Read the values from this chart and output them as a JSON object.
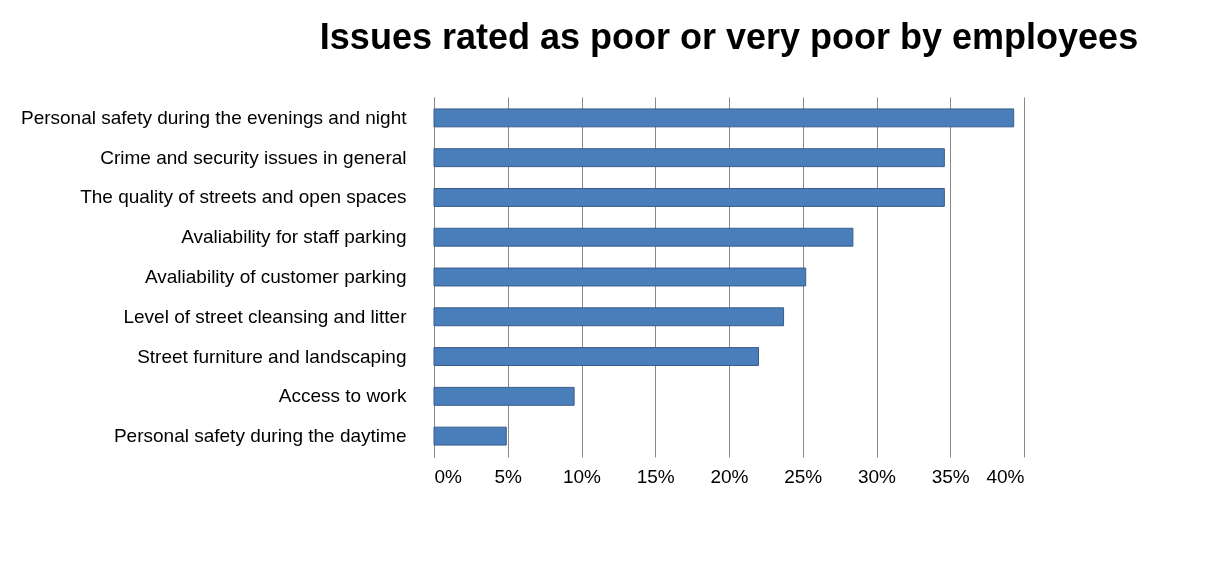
{
  "chart_data": {
    "type": "bar",
    "orientation": "horizontal",
    "title": "Issues rated as poor or very poor by employees",
    "categories": [
      "Personal safety during the evenings and night",
      "Crime and security issues in general",
      "The quality of streets and open spaces",
      "Avaliability for staff parking",
      "Avaliability of customer parking",
      "Level of street cleansing and litter",
      "Street furniture and landscaping",
      "Access to work",
      "Personal safety during the daytime"
    ],
    "values": [
      39.3,
      34.6,
      34.6,
      28.4,
      25.2,
      23.7,
      22.0,
      9.5,
      4.9
    ],
    "color": "#4a7ebb",
    "xlim": [
      0,
      40
    ],
    "xticks": [
      {
        "value": 0,
        "label": "0%"
      },
      {
        "value": 5,
        "label": "5%"
      },
      {
        "value": 10,
        "label": "10%"
      },
      {
        "value": 15,
        "label": "15%"
      },
      {
        "value": 20,
        "label": "20%"
      },
      {
        "value": 25,
        "label": "25%"
      },
      {
        "value": 30,
        "label": "30%"
      },
      {
        "value": 35,
        "label": "35%"
      },
      {
        "value": 40,
        "label": "40%"
      }
    ],
    "grid": "x"
  }
}
